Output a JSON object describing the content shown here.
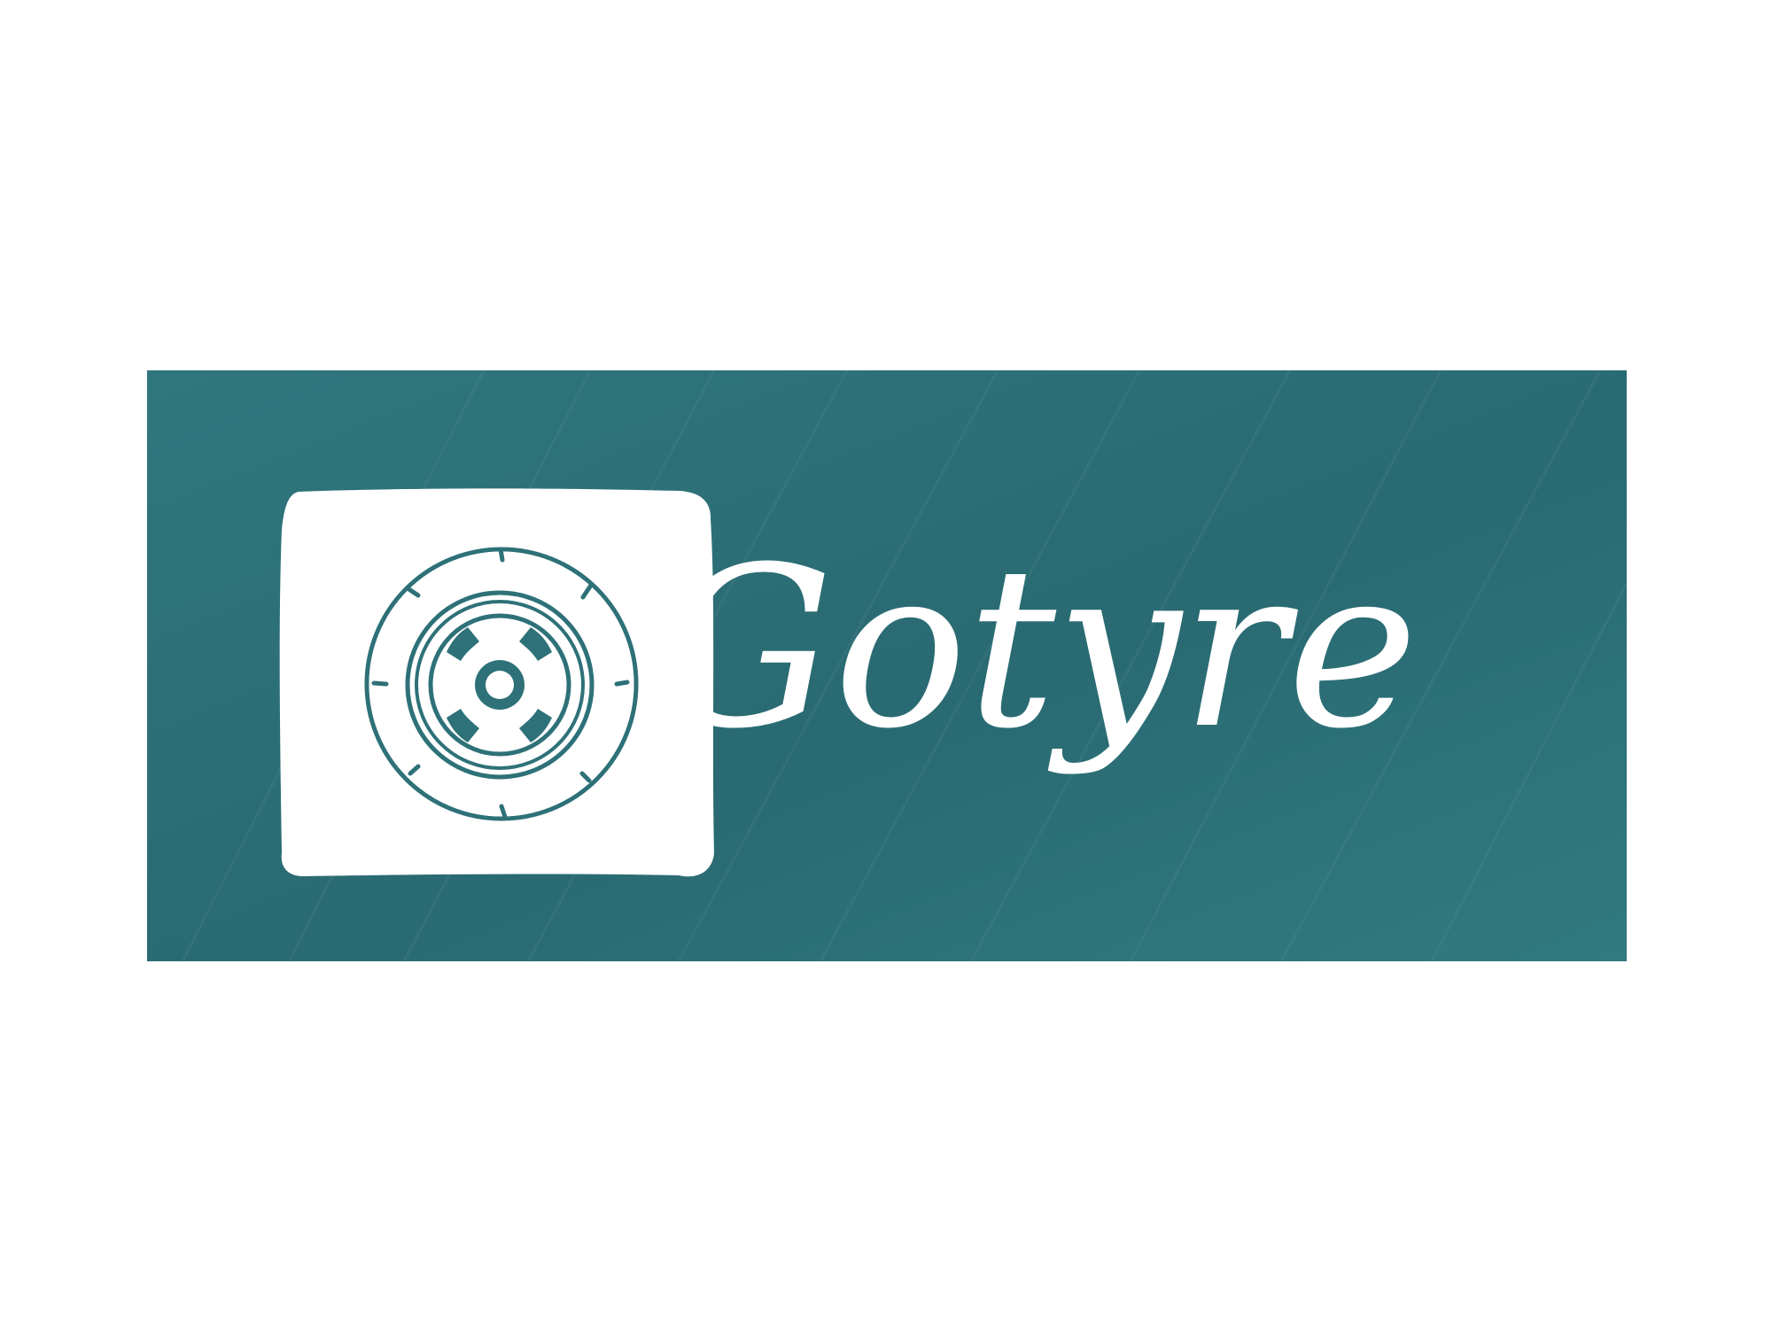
{
  "logo": {
    "brand_name": "Gotyre",
    "icon": "tire-lifebuoy-icon",
    "colors": {
      "background": "#2e7178",
      "background_dark": "#2a6a72",
      "foreground": "#ffffff"
    }
  }
}
